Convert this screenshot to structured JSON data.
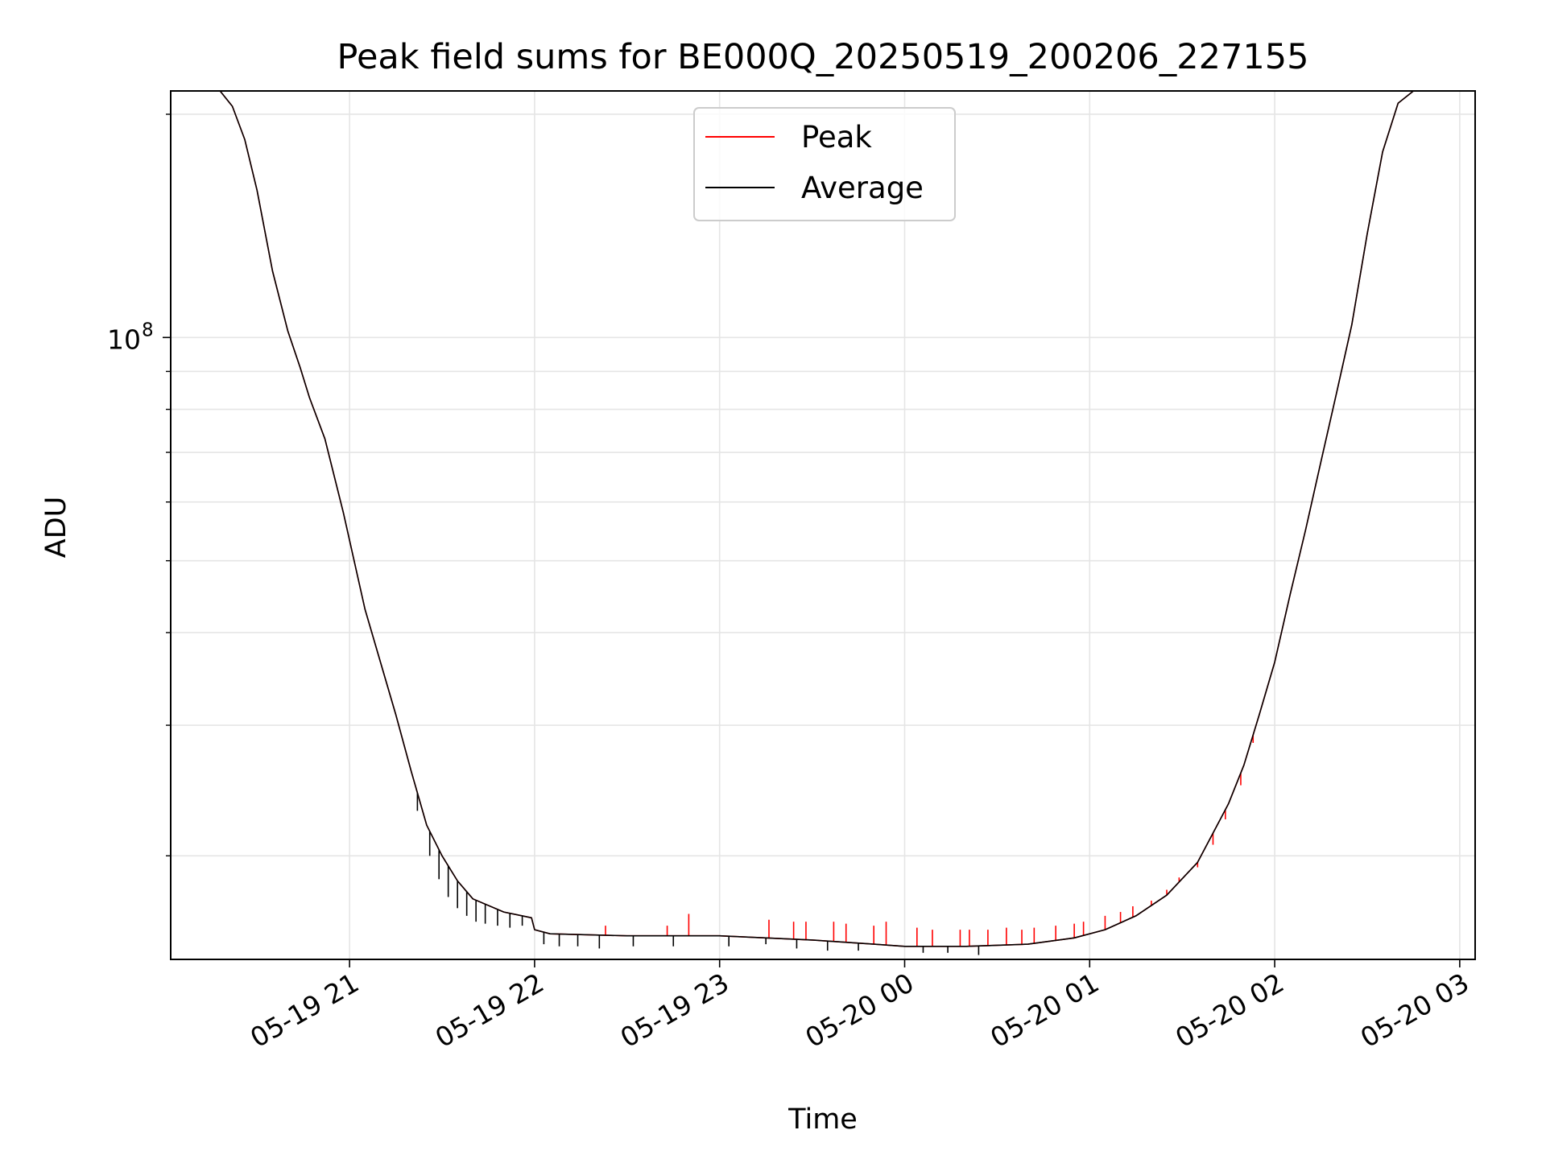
{
  "chart_data": {
    "type": "line",
    "title": "Peak field sums for BE000Q_20250519_200206_227155",
    "xlabel": "Time",
    "ylabel": "ADU",
    "yscale": "log",
    "xlim": [
      "2025-05-19 20:02",
      "2025-05-20 03:05"
    ],
    "ylim": [
      14500000,
      215000000
    ],
    "grid": true,
    "legend_position": "upper center",
    "x_ticks": [
      {
        "time": "2025-05-19 21:00",
        "label": "05-19 21"
      },
      {
        "time": "2025-05-19 22:00",
        "label": "05-19 22"
      },
      {
        "time": "2025-05-19 23:00",
        "label": "05-19 23"
      },
      {
        "time": "2025-05-20 00:00",
        "label": "05-20 00"
      },
      {
        "time": "2025-05-20 01:00",
        "label": "05-20 01"
      },
      {
        "time": "2025-05-20 02:00",
        "label": "05-20 02"
      },
      {
        "time": "2025-05-20 03:00",
        "label": "05-20 03"
      }
    ],
    "y_major_ticks": [
      {
        "value": 100000000,
        "label": "10",
        "exponent": "8"
      }
    ],
    "y_minor_ticks": [
      20000000,
      30000000,
      40000000,
      50000000,
      60000000,
      70000000,
      80000000,
      90000000,
      200000000
    ],
    "series": [
      {
        "name": "Peak",
        "color": "#ff0000",
        "points": [
          [
            "2025-05-19 20:18",
            215000000
          ],
          [
            "2025-05-19 20:22",
            205000000
          ],
          [
            "2025-05-19 20:26",
            185000000
          ],
          [
            "2025-05-19 20:30",
            158000000
          ],
          [
            "2025-05-19 20:35",
            123000000
          ],
          [
            "2025-05-19 20:40",
            102000000
          ],
          [
            "2025-05-19 20:44",
            91000000
          ],
          [
            "2025-05-19 20:47",
            83000000
          ],
          [
            "2025-05-19 20:52",
            73000000
          ],
          [
            "2025-05-19 20:58",
            58000000
          ],
          [
            "2025-05-19 21:05",
            43000000
          ],
          [
            "2025-05-19 21:15",
            31000000
          ],
          [
            "2025-05-19 21:20",
            26000000
          ],
          [
            "2025-05-19 21:25",
            22000000
          ],
          [
            "2025-05-19 21:30",
            20000000
          ],
          [
            "2025-05-19 21:35",
            18500000
          ],
          [
            "2025-05-19 21:40",
            17500000
          ],
          [
            "2025-05-19 21:50",
            16800000
          ],
          [
            "2025-05-19 21:59",
            16500000
          ],
          [
            "2025-05-19 22:00",
            15900000
          ],
          [
            "2025-05-19 22:05",
            15700000
          ],
          [
            "2025-05-19 22:30",
            15600000
          ],
          [
            "2025-05-19 23:00",
            15600000
          ],
          [
            "2025-05-19 23:30",
            15400000
          ],
          [
            "2025-05-19 23:50",
            15200000
          ],
          [
            "2025-05-20 00:00",
            15100000
          ],
          [
            "2025-05-20 00:20",
            15100000
          ],
          [
            "2025-05-20 00:40",
            15200000
          ],
          [
            "2025-05-20 00:55",
            15500000
          ],
          [
            "2025-05-20 01:05",
            15900000
          ],
          [
            "2025-05-20 01:15",
            16600000
          ],
          [
            "2025-05-20 01:25",
            17700000
          ],
          [
            "2025-05-20 01:35",
            19600000
          ],
          [
            "2025-05-20 01:45",
            23500000
          ],
          [
            "2025-05-20 01:50",
            26500000
          ],
          [
            "2025-05-20 01:55",
            31000000
          ],
          [
            "2025-05-20 02:00",
            36500000
          ],
          [
            "2025-05-20 02:05",
            45000000
          ],
          [
            "2025-05-20 02:10",
            55000000
          ],
          [
            "2025-05-20 02:15",
            68000000
          ],
          [
            "2025-05-20 02:20",
            84000000
          ],
          [
            "2025-05-20 02:25",
            104000000
          ],
          [
            "2025-05-20 02:30",
            138000000
          ],
          [
            "2025-05-20 02:35",
            178000000
          ],
          [
            "2025-05-20 02:40",
            207000000
          ],
          [
            "2025-05-20 02:45",
            215000000
          ]
        ],
        "spikes": [
          [
            "2025-05-19 22:23",
            16100000
          ],
          [
            "2025-05-19 22:43",
            16100000
          ],
          [
            "2025-05-19 22:50",
            16700000
          ],
          [
            "2025-05-19 23:16",
            16400000
          ],
          [
            "2025-05-19 23:24",
            16300000
          ],
          [
            "2025-05-19 23:28",
            16300000
          ],
          [
            "2025-05-19 23:37",
            16300000
          ],
          [
            "2025-05-19 23:41",
            16200000
          ],
          [
            "2025-05-19 23:50",
            16100000
          ],
          [
            "2025-05-19 23:54",
            16300000
          ],
          [
            "2025-05-20 00:04",
            16000000
          ],
          [
            "2025-05-20 00:09",
            15900000
          ],
          [
            "2025-05-20 00:18",
            15900000
          ],
          [
            "2025-05-20 00:21",
            15900000
          ],
          [
            "2025-05-20 00:27",
            15900000
          ],
          [
            "2025-05-20 00:33",
            16000000
          ],
          [
            "2025-05-20 00:38",
            15900000
          ],
          [
            "2025-05-20 00:42",
            16000000
          ],
          [
            "2025-05-20 00:49",
            16100000
          ],
          [
            "2025-05-20 00:55",
            16200000
          ],
          [
            "2025-05-20 00:58",
            16300000
          ],
          [
            "2025-05-20 01:05",
            16600000
          ],
          [
            "2025-05-20 01:10",
            16800000
          ],
          [
            "2025-05-20 01:14",
            17100000
          ],
          [
            "2025-05-20 01:20",
            17400000
          ],
          [
            "2025-05-20 01:25",
            18000000
          ],
          [
            "2025-05-20 01:29",
            18700000
          ],
          [
            "2025-05-20 01:35",
            19300000
          ],
          [
            "2025-05-20 01:40",
            20700000
          ],
          [
            "2025-05-20 01:44",
            22400000
          ],
          [
            "2025-05-20 01:49",
            24900000
          ],
          [
            "2025-05-20 01:53",
            28400000
          ]
        ]
      },
      {
        "name": "Average",
        "color": "#000000",
        "points": [
          [
            "2025-05-19 20:18",
            215000000
          ],
          [
            "2025-05-19 20:22",
            205000000
          ],
          [
            "2025-05-19 20:26",
            185000000
          ],
          [
            "2025-05-19 20:30",
            158000000
          ],
          [
            "2025-05-19 20:35",
            123000000
          ],
          [
            "2025-05-19 20:40",
            102000000
          ],
          [
            "2025-05-19 20:44",
            91000000
          ],
          [
            "2025-05-19 20:47",
            83000000
          ],
          [
            "2025-05-19 20:52",
            73000000
          ],
          [
            "2025-05-19 20:58",
            58000000
          ],
          [
            "2025-05-19 21:05",
            43000000
          ],
          [
            "2025-05-19 21:15",
            31000000
          ],
          [
            "2025-05-19 21:20",
            26000000
          ],
          [
            "2025-05-19 21:25",
            22000000
          ],
          [
            "2025-05-19 21:30",
            20000000
          ],
          [
            "2025-05-19 21:35",
            18500000
          ],
          [
            "2025-05-19 21:40",
            17500000
          ],
          [
            "2025-05-19 21:50",
            16800000
          ],
          [
            "2025-05-19 21:59",
            16500000
          ],
          [
            "2025-05-19 22:00",
            15900000
          ],
          [
            "2025-05-19 22:05",
            15700000
          ],
          [
            "2025-05-19 22:30",
            15600000
          ],
          [
            "2025-05-19 23:00",
            15600000
          ],
          [
            "2025-05-19 23:30",
            15400000
          ],
          [
            "2025-05-19 23:50",
            15200000
          ],
          [
            "2025-05-20 00:00",
            15100000
          ],
          [
            "2025-05-20 00:20",
            15100000
          ],
          [
            "2025-05-20 00:40",
            15200000
          ],
          [
            "2025-05-20 00:55",
            15500000
          ],
          [
            "2025-05-20 01:05",
            15900000
          ],
          [
            "2025-05-20 01:15",
            16600000
          ],
          [
            "2025-05-20 01:25",
            17700000
          ],
          [
            "2025-05-20 01:35",
            19600000
          ],
          [
            "2025-05-20 01:45",
            23500000
          ],
          [
            "2025-05-20 01:50",
            26500000
          ],
          [
            "2025-05-20 01:55",
            31000000
          ],
          [
            "2025-05-20 02:00",
            36500000
          ],
          [
            "2025-05-20 02:05",
            45000000
          ],
          [
            "2025-05-20 02:10",
            55000000
          ],
          [
            "2025-05-20 02:15",
            68000000
          ],
          [
            "2025-05-20 02:20",
            84000000
          ],
          [
            "2025-05-20 02:25",
            104000000
          ],
          [
            "2025-05-20 02:30",
            138000000
          ],
          [
            "2025-05-20 02:35",
            178000000
          ],
          [
            "2025-05-20 02:40",
            207000000
          ],
          [
            "2025-05-20 02:45",
            215000000
          ]
        ],
        "dips": [
          [
            "2025-05-19 21:22",
            23000000
          ],
          [
            "2025-05-19 21:26",
            20000000
          ],
          [
            "2025-05-19 21:29",
            18600000
          ],
          [
            "2025-05-19 21:32",
            17600000
          ],
          [
            "2025-05-19 21:35",
            17000000
          ],
          [
            "2025-05-19 21:38",
            16600000
          ],
          [
            "2025-05-19 21:41",
            16300000
          ],
          [
            "2025-05-19 21:44",
            16200000
          ],
          [
            "2025-05-19 21:48",
            16100000
          ],
          [
            "2025-05-19 21:52",
            16000000
          ],
          [
            "2025-05-19 21:56",
            16100000
          ],
          [
            "2025-05-19 22:03",
            15200000
          ],
          [
            "2025-05-19 22:08",
            15100000
          ],
          [
            "2025-05-19 22:14",
            15100000
          ],
          [
            "2025-05-19 22:21",
            15000000
          ],
          [
            "2025-05-19 22:32",
            15100000
          ],
          [
            "2025-05-19 22:45",
            15100000
          ],
          [
            "2025-05-19 23:03",
            15100000
          ],
          [
            "2025-05-19 23:15",
            15200000
          ],
          [
            "2025-05-19 23:25",
            15000000
          ],
          [
            "2025-05-19 23:35",
            14900000
          ],
          [
            "2025-05-19 23:45",
            14900000
          ],
          [
            "2025-05-20 00:06",
            14800000
          ],
          [
            "2025-05-20 00:14",
            14800000
          ],
          [
            "2025-05-20 00:24",
            14700000
          ]
        ]
      }
    ]
  }
}
